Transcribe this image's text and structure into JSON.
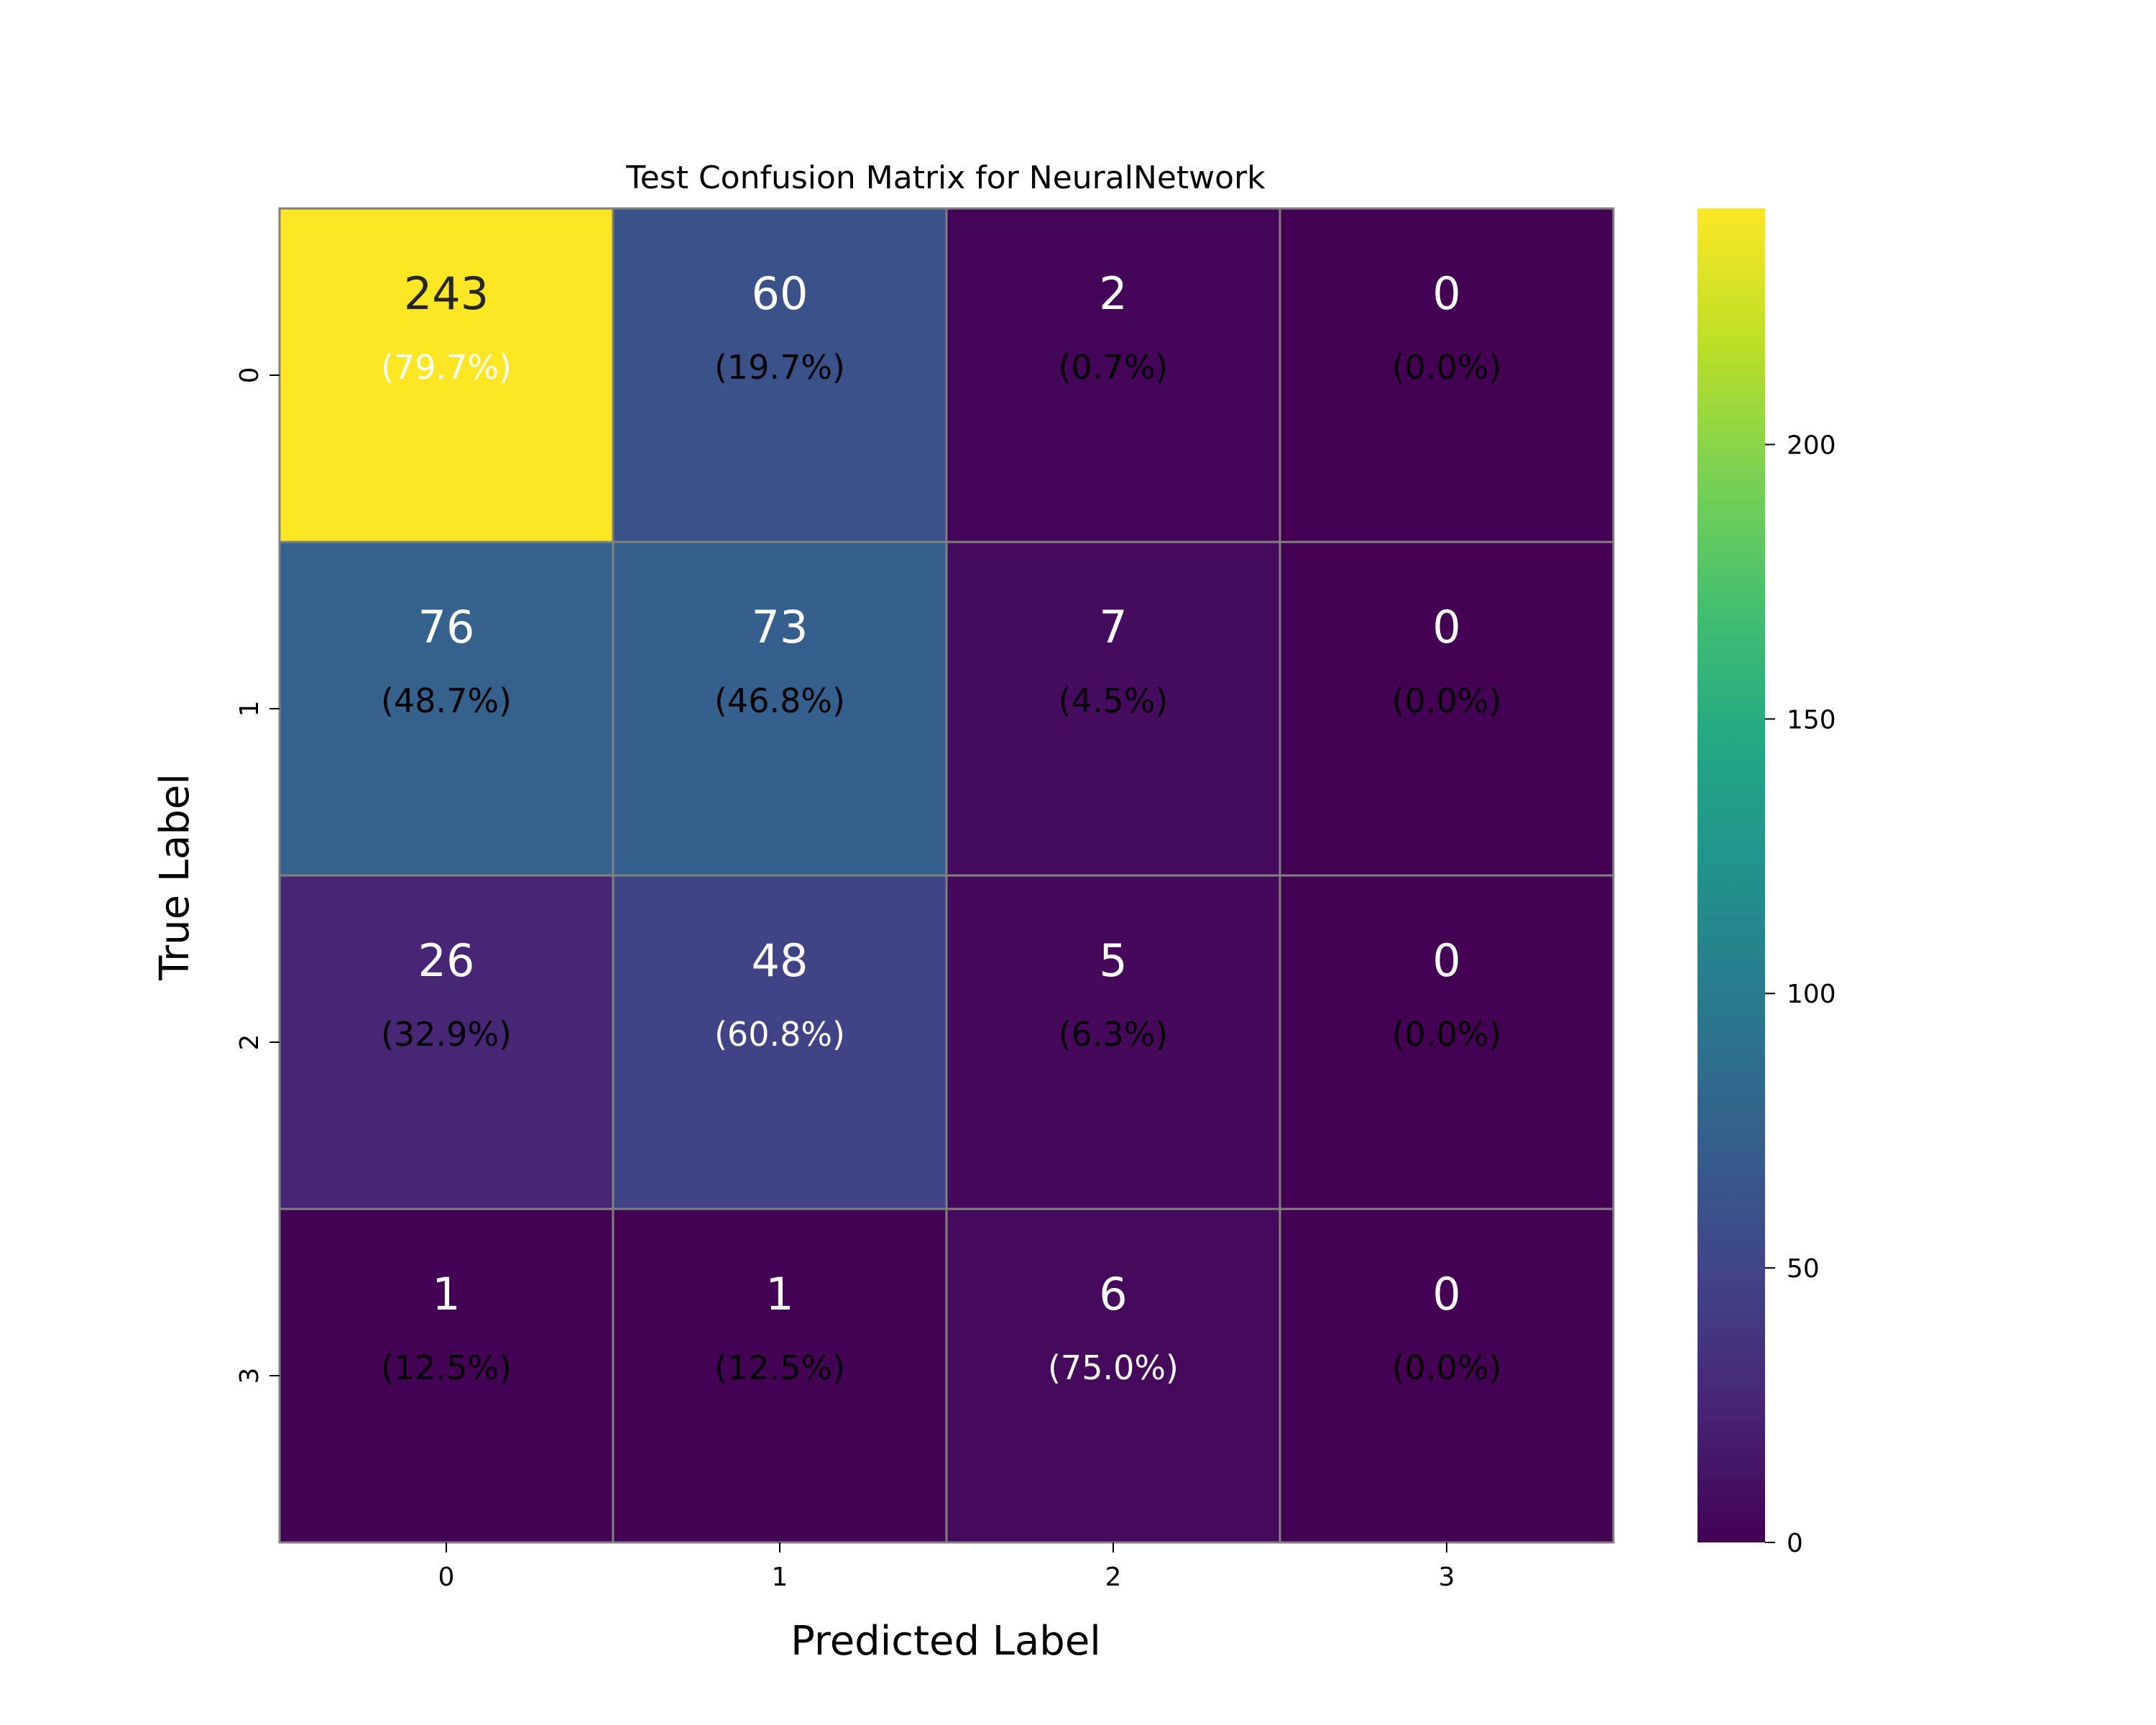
{
  "chart_data": {
    "type": "heatmap",
    "title": "Test Confusion Matrix for NeuralNetwork",
    "xlabel": "Predicted Label",
    "ylabel": "True Label",
    "x_categories": [
      "0",
      "1",
      "2",
      "3"
    ],
    "y_categories": [
      "0",
      "1",
      "2",
      "3"
    ],
    "values": [
      [
        243,
        60,
        2,
        0
      ],
      [
        76,
        73,
        7,
        0
      ],
      [
        26,
        48,
        5,
        0
      ],
      [
        1,
        1,
        6,
        0
      ]
    ],
    "percentages": [
      [
        "(79.7%)",
        "(19.7%)",
        "(0.7%)",
        "(0.0%)"
      ],
      [
        "(48.7%)",
        "(46.8%)",
        "(4.5%)",
        "(0.0%)"
      ],
      [
        "(32.9%)",
        "(60.8%)",
        "(6.3%)",
        "(0.0%)"
      ],
      [
        "(12.5%)",
        "(12.5%)",
        "(75.0%)",
        "(0.0%)"
      ]
    ],
    "colormap": "viridis",
    "colorbar": {
      "range": [
        0,
        243
      ],
      "ticks": [
        "0",
        "50",
        "100",
        "150",
        "200"
      ]
    },
    "grid": true
  }
}
